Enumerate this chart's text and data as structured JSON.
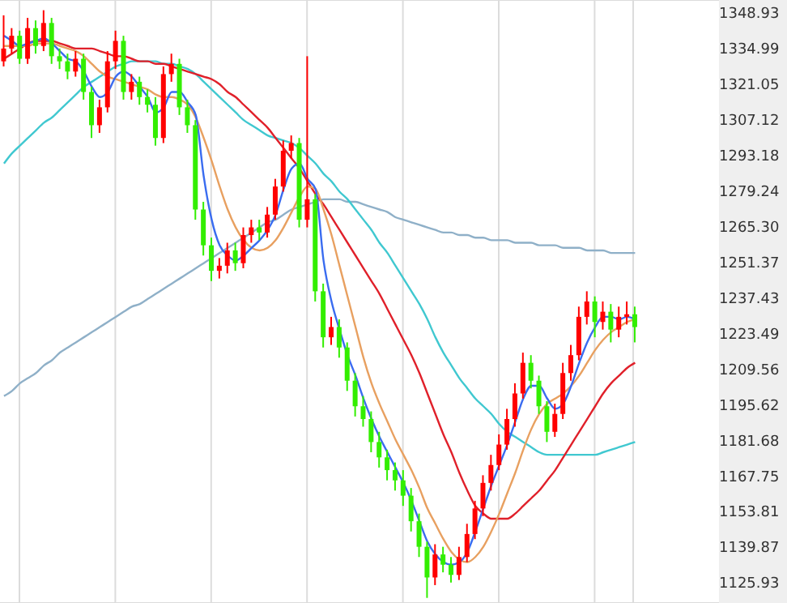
{
  "chart_data": {
    "type": "candlestick",
    "categories": [
      null,
      null,
      null,
      null,
      null,
      null,
      null,
      null,
      null,
      null,
      null,
      null,
      null,
      null,
      null,
      null,
      null,
      null,
      null,
      null,
      null,
      null,
      null,
      null,
      null,
      null,
      null,
      null,
      null,
      null,
      null,
      null,
      null,
      null,
      null,
      null,
      null,
      null,
      null,
      null,
      null,
      null,
      null,
      null,
      null,
      null,
      null,
      null,
      null,
      null,
      null,
      null,
      null,
      null,
      null,
      null,
      null,
      null,
      null,
      null,
      null,
      null,
      null,
      null,
      null,
      null,
      null,
      null,
      null,
      null,
      null,
      null,
      null,
      null,
      null,
      null,
      null,
      null,
      null,
      null,
      null,
      null,
      null,
      null,
      null,
      null,
      null,
      null,
      null,
      null
    ],
    "ohlc": [
      [
        1330,
        1348,
        1328,
        1335
      ],
      [
        1335,
        1343,
        1333,
        1340
      ],
      [
        1340,
        1342,
        1329,
        1331
      ],
      [
        1331,
        1347,
        1329,
        1343
      ],
      [
        1343,
        1346,
        1333,
        1336
      ],
      [
        1336,
        1350,
        1334,
        1345
      ],
      [
        1345,
        1347,
        1329,
        1332
      ],
      [
        1332,
        1335,
        1327,
        1330
      ],
      [
        1330,
        1333,
        1323,
        1326
      ],
      [
        1326,
        1334,
        1324,
        1331
      ],
      [
        1331,
        1333,
        1315,
        1318
      ],
      [
        1318,
        1320,
        1300,
        1305
      ],
      [
        1305,
        1315,
        1302,
        1312
      ],
      [
        1312,
        1334,
        1310,
        1330
      ],
      [
        1330,
        1342,
        1327,
        1338
      ],
      [
        1338,
        1340,
        1315,
        1318
      ],
      [
        1318,
        1325,
        1315,
        1322
      ],
      [
        1322,
        1324,
        1313,
        1316
      ],
      [
        1316,
        1319,
        1310,
        1313
      ],
      [
        1313,
        1316,
        1297,
        1300
      ],
      [
        1300,
        1328,
        1298,
        1325
      ],
      [
        1325,
        1333,
        1322,
        1329
      ],
      [
        1329,
        1331,
        1309,
        1312
      ],
      [
        1312,
        1315,
        1302,
        1305
      ],
      [
        1305,
        1307,
        1268,
        1272
      ],
      [
        1272,
        1275,
        1254,
        1258
      ],
      [
        1258,
        1261,
        1244,
        1248
      ],
      [
        1248,
        1253,
        1245,
        1250
      ],
      [
        1250,
        1259,
        1247,
        1256
      ],
      [
        1256,
        1259,
        1248,
        1251
      ],
      [
        1251,
        1265,
        1249,
        1262
      ],
      [
        1262,
        1268,
        1259,
        1265
      ],
      [
        1265,
        1268,
        1260,
        1263
      ],
      [
        1263,
        1273,
        1261,
        1270
      ],
      [
        1270,
        1284,
        1268,
        1281
      ],
      [
        1281,
        1299,
        1279,
        1295
      ],
      [
        1295,
        1301,
        1292,
        1298
      ],
      [
        1298,
        1300,
        1265,
        1268
      ],
      [
        1268,
        1332,
        1265,
        1276
      ],
      [
        1276,
        1278,
        1236,
        1240
      ],
      [
        1240,
        1243,
        1218,
        1222
      ],
      [
        1222,
        1230,
        1219,
        1226
      ],
      [
        1226,
        1229,
        1214,
        1218
      ],
      [
        1218,
        1220,
        1201,
        1205
      ],
      [
        1205,
        1208,
        1191,
        1195
      ],
      [
        1195,
        1199,
        1187,
        1190
      ],
      [
        1190,
        1193,
        1177,
        1181
      ],
      [
        1181,
        1185,
        1171,
        1175
      ],
      [
        1175,
        1178,
        1166,
        1170
      ],
      [
        1170,
        1173,
        1162,
        1166
      ],
      [
        1166,
        1170,
        1156,
        1160
      ],
      [
        1160,
        1163,
        1146,
        1150
      ],
      [
        1150,
        1153,
        1136,
        1140
      ],
      [
        1140,
        1142,
        1120,
        1128
      ],
      [
        1128,
        1141,
        1125,
        1137
      ],
      [
        1137,
        1140,
        1130,
        1133
      ],
      [
        1133,
        1136,
        1126,
        1129
      ],
      [
        1129,
        1140,
        1127,
        1136
      ],
      [
        1136,
        1149,
        1134,
        1145
      ],
      [
        1145,
        1158,
        1143,
        1155
      ],
      [
        1155,
        1168,
        1152,
        1165
      ],
      [
        1165,
        1176,
        1162,
        1172
      ],
      [
        1172,
        1184,
        1170,
        1180
      ],
      [
        1180,
        1194,
        1178,
        1190
      ],
      [
        1190,
        1204,
        1187,
        1200
      ],
      [
        1200,
        1216,
        1198,
        1212
      ],
      [
        1212,
        1215,
        1202,
        1205
      ],
      [
        1205,
        1207,
        1192,
        1195
      ],
      [
        1195,
        1197,
        1181,
        1185
      ],
      [
        1185,
        1196,
        1183,
        1192
      ],
      [
        1192,
        1212,
        1190,
        1208
      ],
      [
        1208,
        1219,
        1205,
        1215
      ],
      [
        1215,
        1234,
        1213,
        1230
      ],
      [
        1230,
        1240,
        1227,
        1236
      ],
      [
        1236,
        1238,
        1222,
        1228
      ],
      [
        1228,
        1236,
        1225,
        1232
      ],
      [
        1232,
        1235,
        1220,
        1225
      ],
      [
        1225,
        1234,
        1222,
        1230
      ],
      [
        1230,
        1236,
        1227,
        1231
      ],
      [
        1231,
        1234,
        1220,
        1226
      ],
      null,
      null,
      null,
      null,
      null,
      null,
      null,
      null,
      null,
      null
    ],
    "colors": [
      "#ff0000",
      "#ff0000",
      "#33ee00",
      "#ff0000",
      "#33ee00",
      "#ff0000",
      "#33ee00",
      "#33ee00",
      "#33ee00",
      "#ff0000",
      "#33ee00",
      "#33ee00",
      "#ff0000",
      "#ff0000",
      "#ff0000",
      "#33ee00",
      "#ff0000",
      "#33ee00",
      "#33ee00",
      "#33ee00",
      "#ff0000",
      "#ff0000",
      "#33ee00",
      "#33ee00",
      "#33ee00",
      "#33ee00",
      "#33ee00",
      "#ff0000",
      "#ff0000",
      "#33ee00",
      "#ff0000",
      "#ff0000",
      "#33ee00",
      "#ff0000",
      "#ff0000",
      "#ff0000",
      "#ff0000",
      "#33ee00",
      "#ff0000",
      "#33ee00",
      "#33ee00",
      "#ff0000",
      "#33ee00",
      "#33ee00",
      "#33ee00",
      "#33ee00",
      "#33ee00",
      "#33ee00",
      "#33ee00",
      "#33ee00",
      "#33ee00",
      "#33ee00",
      "#33ee00",
      "#33ee00",
      "#ff0000",
      "#33ee00",
      "#33ee00",
      "#ff0000",
      "#ff0000",
      "#ff0000",
      "#ff0000",
      "#ff0000",
      "#ff0000",
      "#ff0000",
      "#ff0000",
      "#ff0000",
      "#33ee00",
      "#33ee00",
      "#33ee00",
      "#ff0000",
      "#ff0000",
      "#ff0000",
      "#ff0000",
      "#ff0000",
      "#33ee00",
      "#ff0000",
      "#33ee00",
      "#ff0000",
      "#ff0000",
      "#33ee00",
      null,
      null,
      null,
      null,
      null,
      null,
      null,
      null,
      null,
      null
    ],
    "series": [
      {
        "type": "line",
        "color": "#8fb0c8",
        "values": [
          1199,
          1201,
          1204,
          1206,
          1208,
          1211,
          1213,
          1216,
          1218,
          1220,
          1222,
          1224,
          1226,
          1228,
          1230,
          1232,
          1234,
          1235,
          1237,
          1239,
          1241,
          1243,
          1245,
          1247,
          1249,
          1251,
          1253,
          1255,
          1257,
          1259,
          1261,
          1263,
          1265,
          1267,
          1268,
          1270,
          1272,
          1273,
          1274,
          1275,
          1276,
          1276,
          1276,
          1275,
          1275,
          1274,
          1273,
          1272,
          1271,
          1269,
          1268,
          1267,
          1266,
          1265,
          1264,
          1263,
          1263,
          1262,
          1262,
          1261,
          1261,
          1260,
          1260,
          1260,
          1259,
          1259,
          1259,
          1258,
          1258,
          1258,
          1257,
          1257,
          1257,
          1256,
          1256,
          1256,
          1255,
          1255,
          1255,
          1255,
          null,
          null,
          null,
          null,
          null,
          null,
          null,
          null,
          null,
          null
        ]
      },
      {
        "type": "line",
        "color": "#40c8d0",
        "values": [
          1290,
          1294,
          1297,
          1300,
          1303,
          1306,
          1308,
          1311,
          1314,
          1317,
          1320,
          1322,
          1324,
          1326,
          1328,
          1329,
          1330,
          1330,
          1330,
          1330,
          1329,
          1329,
          1328,
          1327,
          1325,
          1322,
          1319,
          1316,
          1313,
          1310,
          1307,
          1305,
          1303,
          1301,
          1300,
          1299,
          1298,
          1296,
          1293,
          1290,
          1286,
          1283,
          1279,
          1276,
          1272,
          1268,
          1264,
          1259,
          1255,
          1250,
          1245,
          1240,
          1235,
          1229,
          1222,
          1216,
          1211,
          1206,
          1202,
          1198,
          1195,
          1192,
          1188,
          1185,
          1183,
          1181,
          1179,
          1177,
          1176,
          1176,
          1176,
          1176,
          1176,
          1176,
          1176,
          1177,
          1178,
          1179,
          1180,
          1181,
          null,
          null,
          null,
          null,
          null,
          null,
          null,
          null,
          null,
          null
        ]
      },
      {
        "type": "line",
        "color": "#e0202a",
        "values": [
          1331,
          1333,
          1335,
          1337,
          1338,
          1338,
          1338,
          1337,
          1336,
          1335,
          1335,
          1335,
          1334,
          1333,
          1332,
          1332,
          1331,
          1330,
          1330,
          1329,
          1329,
          1328,
          1327,
          1326,
          1325,
          1324,
          1323,
          1321,
          1318,
          1316,
          1313,
          1310,
          1307,
          1304,
          1300,
          1296,
          1292,
          1288,
          1283,
          1278,
          1274,
          1269,
          1264,
          1259,
          1254,
          1249,
          1244,
          1239,
          1233,
          1227,
          1221,
          1215,
          1208,
          1200,
          1192,
          1184,
          1177,
          1169,
          1162,
          1156,
          1153,
          1151,
          1151,
          1151,
          1153,
          1156,
          1159,
          1162,
          1166,
          1170,
          1175,
          1180,
          1185,
          1190,
          1195,
          1200,
          1204,
          1207,
          1210,
          1212,
          null,
          null,
          null,
          null,
          null,
          null,
          null,
          null,
          null,
          null
        ]
      },
      {
        "type": "line",
        "color": "#e8a060",
        "values": [
          1336,
          1336,
          1336,
          1336,
          1337,
          1337,
          1337,
          1336,
          1335,
          1334,
          1332,
          1329,
          1326,
          1324,
          1323,
          1322,
          1321,
          1320,
          1319,
          1317,
          1316,
          1316,
          1315,
          1313,
          1308,
          1300,
          1291,
          1281,
          1272,
          1265,
          1260,
          1257,
          1256,
          1257,
          1260,
          1265,
          1271,
          1277,
          1281,
          1280,
          1272,
          1262,
          1250,
          1238,
          1226,
          1214,
          1204,
          1196,
          1189,
          1182,
          1176,
          1170,
          1163,
          1155,
          1149,
          1143,
          1138,
          1135,
          1134,
          1136,
          1140,
          1146,
          1153,
          1161,
          1169,
          1178,
          1186,
          1192,
          1196,
          1198,
          1200,
          1203,
          1207,
          1212,
          1217,
          1221,
          1224,
          1226,
          1228,
          1229,
          null,
          null,
          null,
          null,
          null,
          null,
          null,
          null,
          null,
          null
        ]
      },
      {
        "type": "line",
        "color": "#3a6cf0",
        "values": [
          1340,
          1338,
          1336,
          1337,
          1338,
          1339,
          1337,
          1334,
          1331,
          1330,
          1326,
          1320,
          1316,
          1318,
          1324,
          1326,
          1324,
          1320,
          1316,
          1310,
          1312,
          1318,
          1318,
          1314,
          1309,
          1285,
          1268,
          1258,
          1254,
          1252,
          1254,
          1257,
          1260,
          1264,
          1270,
          1280,
          1288,
          1290,
          1284,
          1280,
          1252,
          1236,
          1225,
          1215,
          1207,
          1198,
          1190,
          1183,
          1177,
          1171,
          1165,
          1158,
          1150,
          1142,
          1137,
          1134,
          1133,
          1134,
          1138,
          1146,
          1155,
          1164,
          1172,
          1180,
          1189,
          1198,
          1203,
          1203,
          1198,
          1194,
          1196,
          1203,
          1212,
          1220,
          1226,
          1230,
          1230,
          1229,
          1230,
          1229,
          null,
          null,
          null,
          null,
          null,
          null,
          null,
          null,
          null,
          null
        ]
      }
    ],
    "ylim": [
      1118,
      1354
    ],
    "yticks": [
      1348.93,
      1334.99,
      1321.05,
      1307.12,
      1293.18,
      1279.24,
      {
        "value": 1265.3,
        "label": "1265.30"
      },
      1251.37,
      1237.43,
      1223.49,
      1209.56,
      1195.62,
      1181.68,
      1167.75,
      1153.81,
      1139.87,
      1125.93
    ],
    "grid": true
  }
}
